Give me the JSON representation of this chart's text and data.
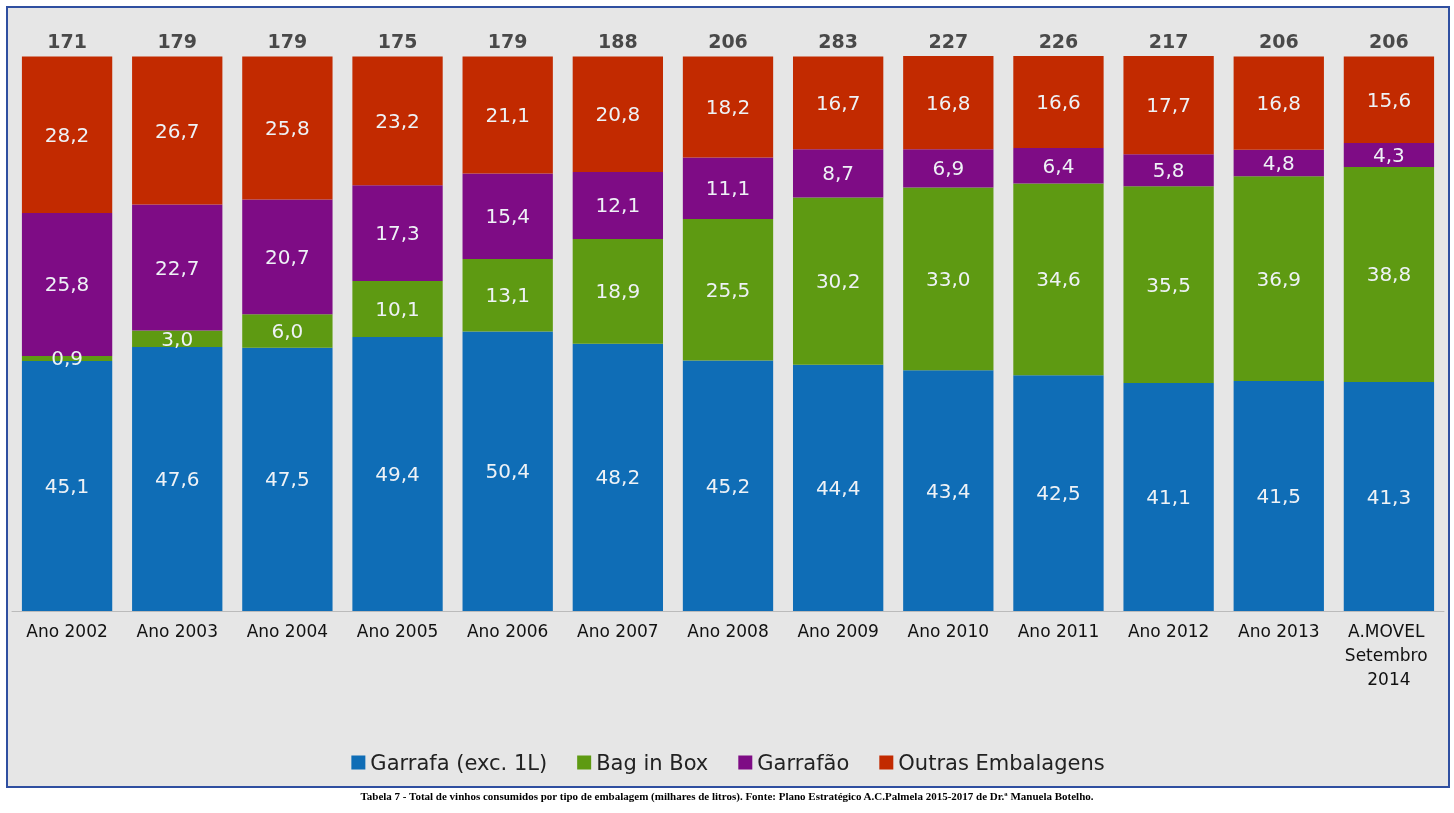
{
  "chart_data": {
    "type": "bar",
    "stacked": true,
    "categories": [
      "Ano 2002",
      "Ano 2003",
      "Ano 2004",
      "Ano 2005",
      "Ano 2006",
      "Ano 2007",
      "Ano 2008",
      "Ano 2009",
      "Ano 2010",
      "Ano 2011",
      "Ano 2012",
      "Ano 2013",
      "A.MOVEL Setembro 2014"
    ],
    "series": [
      {
        "name": "Garrafa (exc. 1L)",
        "color": "#0f6db6",
        "values": [
          45.1,
          47.6,
          47.5,
          49.4,
          50.4,
          48.2,
          45.2,
          44.4,
          43.4,
          42.5,
          41.1,
          41.5,
          41.3
        ],
        "value_labels": [
          "45,1",
          "47,6",
          "47,5",
          "49,4",
          "50,4",
          "48,2",
          "45,2",
          "44,4",
          "43,4",
          "42,5",
          "41,1",
          "41,5",
          "41,3"
        ]
      },
      {
        "name": "Bag in Box",
        "color": "#5e9a12",
        "values": [
          0.9,
          3.0,
          6.0,
          10.1,
          13.1,
          18.9,
          25.5,
          30.2,
          33.0,
          34.6,
          35.5,
          36.9,
          38.8
        ],
        "value_labels": [
          "0,9",
          "3,0",
          "6,0",
          "10,1",
          "13,1",
          "18,9",
          "25,5",
          "30,2",
          "33,0",
          "34,6",
          "35,5",
          "36,9",
          "38,8"
        ]
      },
      {
        "name": "Garrafão",
        "color": "#7e0c85",
        "values": [
          25.8,
          22.7,
          20.7,
          17.3,
          15.4,
          12.1,
          11.1,
          8.7,
          6.9,
          6.4,
          5.8,
          4.8,
          4.3
        ],
        "value_labels": [
          "25,8",
          "22,7",
          "20,7",
          "17,3",
          "15,4",
          "12,1",
          "11,1",
          "8,7",
          "6,9",
          "6,4",
          "5,8",
          "4,8",
          "4,3"
        ]
      },
      {
        "name": "Outras Embalagens",
        "color": "#c22a00",
        "values": [
          28.2,
          26.7,
          25.8,
          23.2,
          21.1,
          20.8,
          18.2,
          16.7,
          16.8,
          16.6,
          17.7,
          16.8,
          15.6
        ],
        "value_labels": [
          "28,2",
          "26,7",
          "25,8",
          "23,2",
          "21,1",
          "20,8",
          "18,2",
          "16,7",
          "16,8",
          "16,6",
          "17,7",
          "16,8",
          "15,6"
        ]
      }
    ],
    "legend": "bottom",
    "annotations": [
      {
        "text": "171",
        "x": "Ano 2002",
        "y": 100
      },
      {
        "text": "179",
        "x": "Ano 2003",
        "y": 100
      },
      {
        "text": "179",
        "x": "Ano 2004",
        "y": 100
      },
      {
        "text": "175",
        "x": "Ano 2005",
        "y": 100
      },
      {
        "text": "179",
        "x": "Ano 2006",
        "y": 100
      },
      {
        "text": "188",
        "x": "Ano 2007",
        "y": 100
      },
      {
        "text": "206",
        "x": "Ano 2008",
        "y": 100
      },
      {
        "text": "283",
        "x": "Ano 2009",
        "y": 100
      },
      {
        "text": "227",
        "x": "Ano 2010",
        "y": 100
      },
      {
        "text": "226",
        "x": "Ano 2011",
        "y": 100
      },
      {
        "text": "217",
        "x": "Ano 2012",
        "y": 100
      },
      {
        "text": "206",
        "x": "Ano 2013",
        "y": 100
      },
      {
        "text": "206",
        "x": "A.MOVEL Setembro 2014",
        "y": 100
      },
      "Tabela 7 - Total de vinhos consumidos por tipo de embalagem (milhares de litros). Fonte: Plano Estratégico A.C.Palmela 2015-2017 de Dr.ª Manuela Botelho."
    ]
  }
}
